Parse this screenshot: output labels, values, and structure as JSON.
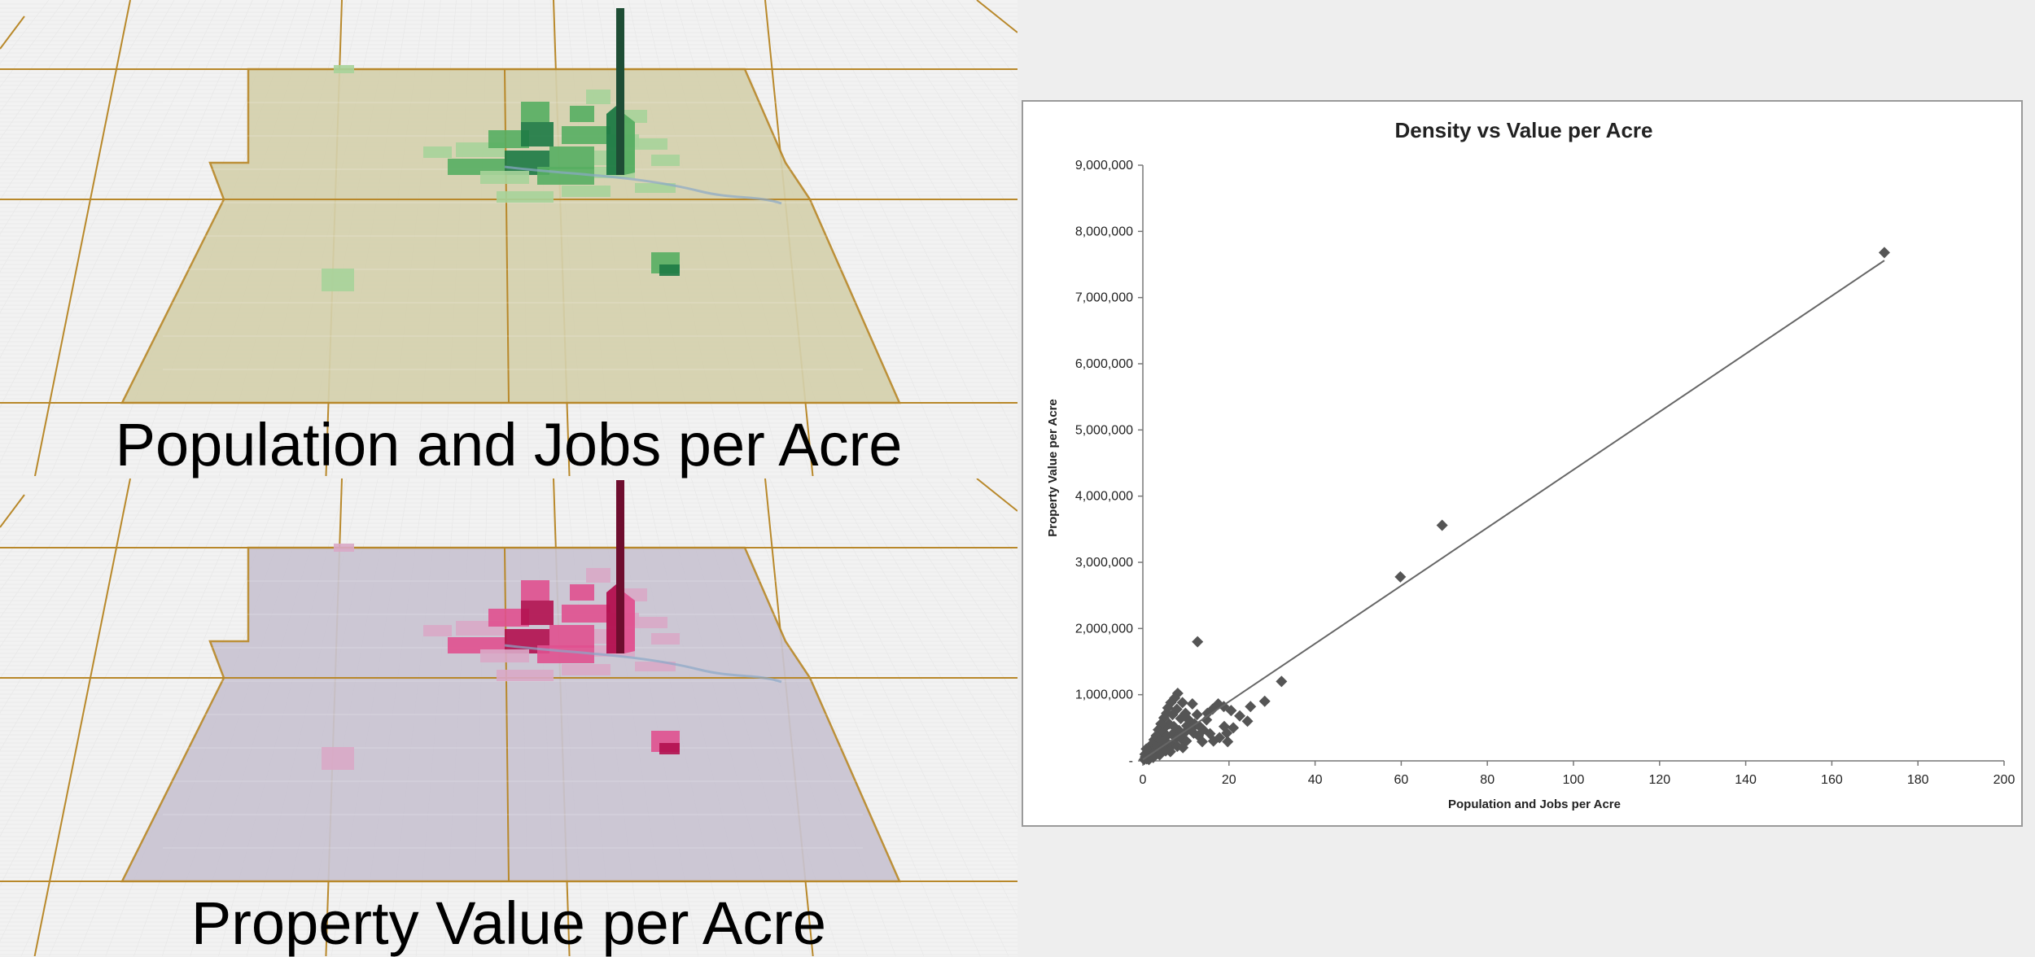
{
  "maps": {
    "top": {
      "caption": "Population and Jobs per Acre",
      "colors": {
        "land": "#d5d1ad",
        "light": "#a7d39a",
        "mid": "#56ae62",
        "dark": "#1d7a45",
        "spike": "#1e4d35",
        "boundary": "#b8882a"
      }
    },
    "bottom": {
      "caption": "Property Value per Acre",
      "colors": {
        "land": "#c9c4d2",
        "light": "#d9a9c6",
        "mid": "#e0508f",
        "dark": "#b3104f",
        "spike": "#6e0d2e",
        "boundary": "#b8882a"
      }
    }
  },
  "chart_data": {
    "type": "scatter",
    "title": "Density vs Value per Acre",
    "xlabel": "Population  and Jobs per Acre",
    "ylabel": "Property Value per Acre",
    "xlim": [
      0,
      200
    ],
    "ylim": [
      0,
      9000000
    ],
    "x_ticks": [
      {
        "value": 0,
        "label": "0"
      },
      {
        "value": 20,
        "label": "20"
      },
      {
        "value": 40,
        "label": "40"
      },
      {
        "value": 60,
        "label": "60"
      },
      {
        "value": 80,
        "label": "80"
      },
      {
        "value": 100,
        "label": "100"
      },
      {
        "value": 120,
        "label": "120"
      },
      {
        "value": 140,
        "label": "140"
      },
      {
        "value": 160,
        "label": "160"
      },
      {
        "value": 180,
        "label": "180"
      },
      {
        "value": 200,
        "label": "200"
      }
    ],
    "y_ticks": [
      {
        "value": 0,
        "label": "-"
      },
      {
        "value": 1000000,
        "label": "1,000,000"
      },
      {
        "value": 2000000,
        "label": "2,000,000"
      },
      {
        "value": 3000000,
        "label": "3,000,000"
      },
      {
        "value": 4000000,
        "label": "4,000,000"
      },
      {
        "value": 5000000,
        "label": "5,000,000"
      },
      {
        "value": 6000000,
        "label": "6,000,000"
      },
      {
        "value": 7000000,
        "label": "7,000,000"
      },
      {
        "value": 8000000,
        "label": "8,000,000"
      },
      {
        "value": 9000000,
        "label": "9,000,000"
      }
    ],
    "marker": "diamond",
    "marker_color": "#555555",
    "points": [
      [
        172.2,
        7680000
      ],
      [
        69.5,
        3560000
      ],
      [
        59.8,
        2780000
      ],
      [
        12.7,
        1800000
      ],
      [
        32.2,
        1200000
      ],
      [
        28.3,
        900000
      ],
      [
        25.0,
        820000
      ],
      [
        20.5,
        760000
      ],
      [
        22.5,
        680000
      ],
      [
        18.9,
        520000
      ],
      [
        24.3,
        600000
      ],
      [
        19.5,
        420000
      ],
      [
        17.8,
        350000
      ],
      [
        12.6,
        700000
      ],
      [
        14.8,
        620000
      ],
      [
        16.2,
        780000
      ],
      [
        17.5,
        860000
      ],
      [
        18.8,
        820000
      ],
      [
        21.0,
        500000
      ],
      [
        19.7,
        290000
      ],
      [
        16.4,
        300000
      ],
      [
        14.0,
        470000
      ],
      [
        11.8,
        420000
      ],
      [
        10.2,
        530000
      ],
      [
        8.1,
        1020000
      ],
      [
        7.4,
        950000
      ],
      [
        9.2,
        880000
      ],
      [
        6.5,
        880000
      ],
      [
        5.8,
        800000
      ],
      [
        7.9,
        780000
      ],
      [
        6.9,
        700000
      ],
      [
        5.5,
        720000
      ],
      [
        4.9,
        650000
      ],
      [
        8.8,
        640000
      ],
      [
        9.9,
        720000
      ],
      [
        10.8,
        610000
      ],
      [
        12.0,
        560000
      ],
      [
        13.2,
        520000
      ],
      [
        11.2,
        480000
      ],
      [
        9.6,
        420000
      ],
      [
        8.4,
        460000
      ],
      [
        7.2,
        520000
      ],
      [
        6.1,
        560000
      ],
      [
        5.0,
        500000
      ],
      [
        4.2,
        560000
      ],
      [
        3.6,
        470000
      ],
      [
        4.5,
        420000
      ],
      [
        5.6,
        380000
      ],
      [
        6.8,
        400000
      ],
      [
        7.8,
        350000
      ],
      [
        9.0,
        330000
      ],
      [
        10.1,
        300000
      ],
      [
        3.1,
        380000
      ],
      [
        2.6,
        320000
      ],
      [
        3.9,
        300000
      ],
      [
        4.8,
        280000
      ],
      [
        5.9,
        260000
      ],
      [
        6.9,
        240000
      ],
      [
        8.0,
        220000
      ],
      [
        9.3,
        200000
      ],
      [
        2.2,
        260000
      ],
      [
        1.8,
        200000
      ],
      [
        2.9,
        210000
      ],
      [
        3.6,
        190000
      ],
      [
        4.4,
        170000
      ],
      [
        5.3,
        150000
      ],
      [
        6.4,
        140000
      ],
      [
        1.3,
        150000
      ],
      [
        2.1,
        130000
      ],
      [
        3.0,
        110000
      ],
      [
        3.9,
        90000
      ],
      [
        1.0,
        90000
      ],
      [
        1.7,
        70000
      ],
      [
        0.6,
        60000
      ],
      [
        2.4,
        50000
      ],
      [
        0.9,
        30000
      ],
      [
        0.3,
        20000
      ],
      [
        1.4,
        20000
      ],
      [
        0.5,
        100000
      ],
      [
        0.8,
        180000
      ],
      [
        11.5,
        860000
      ],
      [
        12.9,
        380000
      ],
      [
        13.8,
        290000
      ],
      [
        15.6,
        410000
      ],
      [
        15.0,
        720000
      ]
    ],
    "trendline": {
      "type": "linear",
      "x1": 0,
      "y1": 20000,
      "x2": 172.2,
      "y2": 7560000,
      "color": "#666666"
    }
  }
}
